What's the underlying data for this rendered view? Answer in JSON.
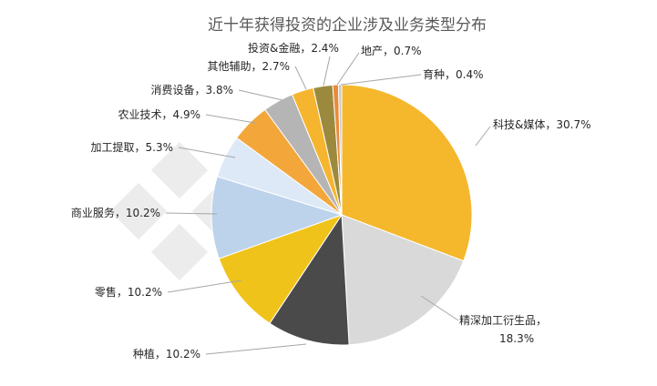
{
  "chart_data": {
    "type": "pie",
    "title": "近十年获得投资的企业涉及业务类型分布",
    "slices": [
      {
        "name": "科技&媒体",
        "value": 30.7,
        "label": "科技&媒体，30.7%",
        "color": "#f5b72c"
      },
      {
        "name": "精深加工衍生品",
        "value": 18.3,
        "label_lines": [
          "精深加工衍生品，",
          "18.3%"
        ],
        "color": "#d9d9d9"
      },
      {
        "name": "种植",
        "value": 10.2,
        "label": "种植，10.2%",
        "color": "#4a4a4a"
      },
      {
        "name": "零售",
        "value": 10.2,
        "label": "零售，10.2%",
        "color": "#f0c31a"
      },
      {
        "name": "商业服务",
        "value": 10.2,
        "label": "商业服务，10.2%",
        "color": "#bdd3ec"
      },
      {
        "name": "加工提取",
        "value": 5.3,
        "label": "加工提取，5.3%",
        "color": "#dde9f6"
      },
      {
        "name": "农业技术",
        "value": 4.9,
        "label": "农业技术，4.9%",
        "color": "#f3a73b"
      },
      {
        "name": "消费设备",
        "value": 3.8,
        "label": "消费设备，3.8%",
        "color": "#b5b5b5"
      },
      {
        "name": "其他辅助",
        "value": 2.7,
        "label": "其他辅助，2.7%",
        "color": "#f5b52e"
      },
      {
        "name": "投资&金融",
        "value": 2.4,
        "label": "投资&金融，2.4%",
        "color": "#9b8a3e"
      },
      {
        "name": "地产",
        "value": 0.7,
        "label": "地产，0.7%",
        "color": "#e98a3a"
      },
      {
        "name": "育种",
        "value": 0.4,
        "label": "育种，0.4%",
        "color": "#c9c9c9"
      }
    ]
  }
}
